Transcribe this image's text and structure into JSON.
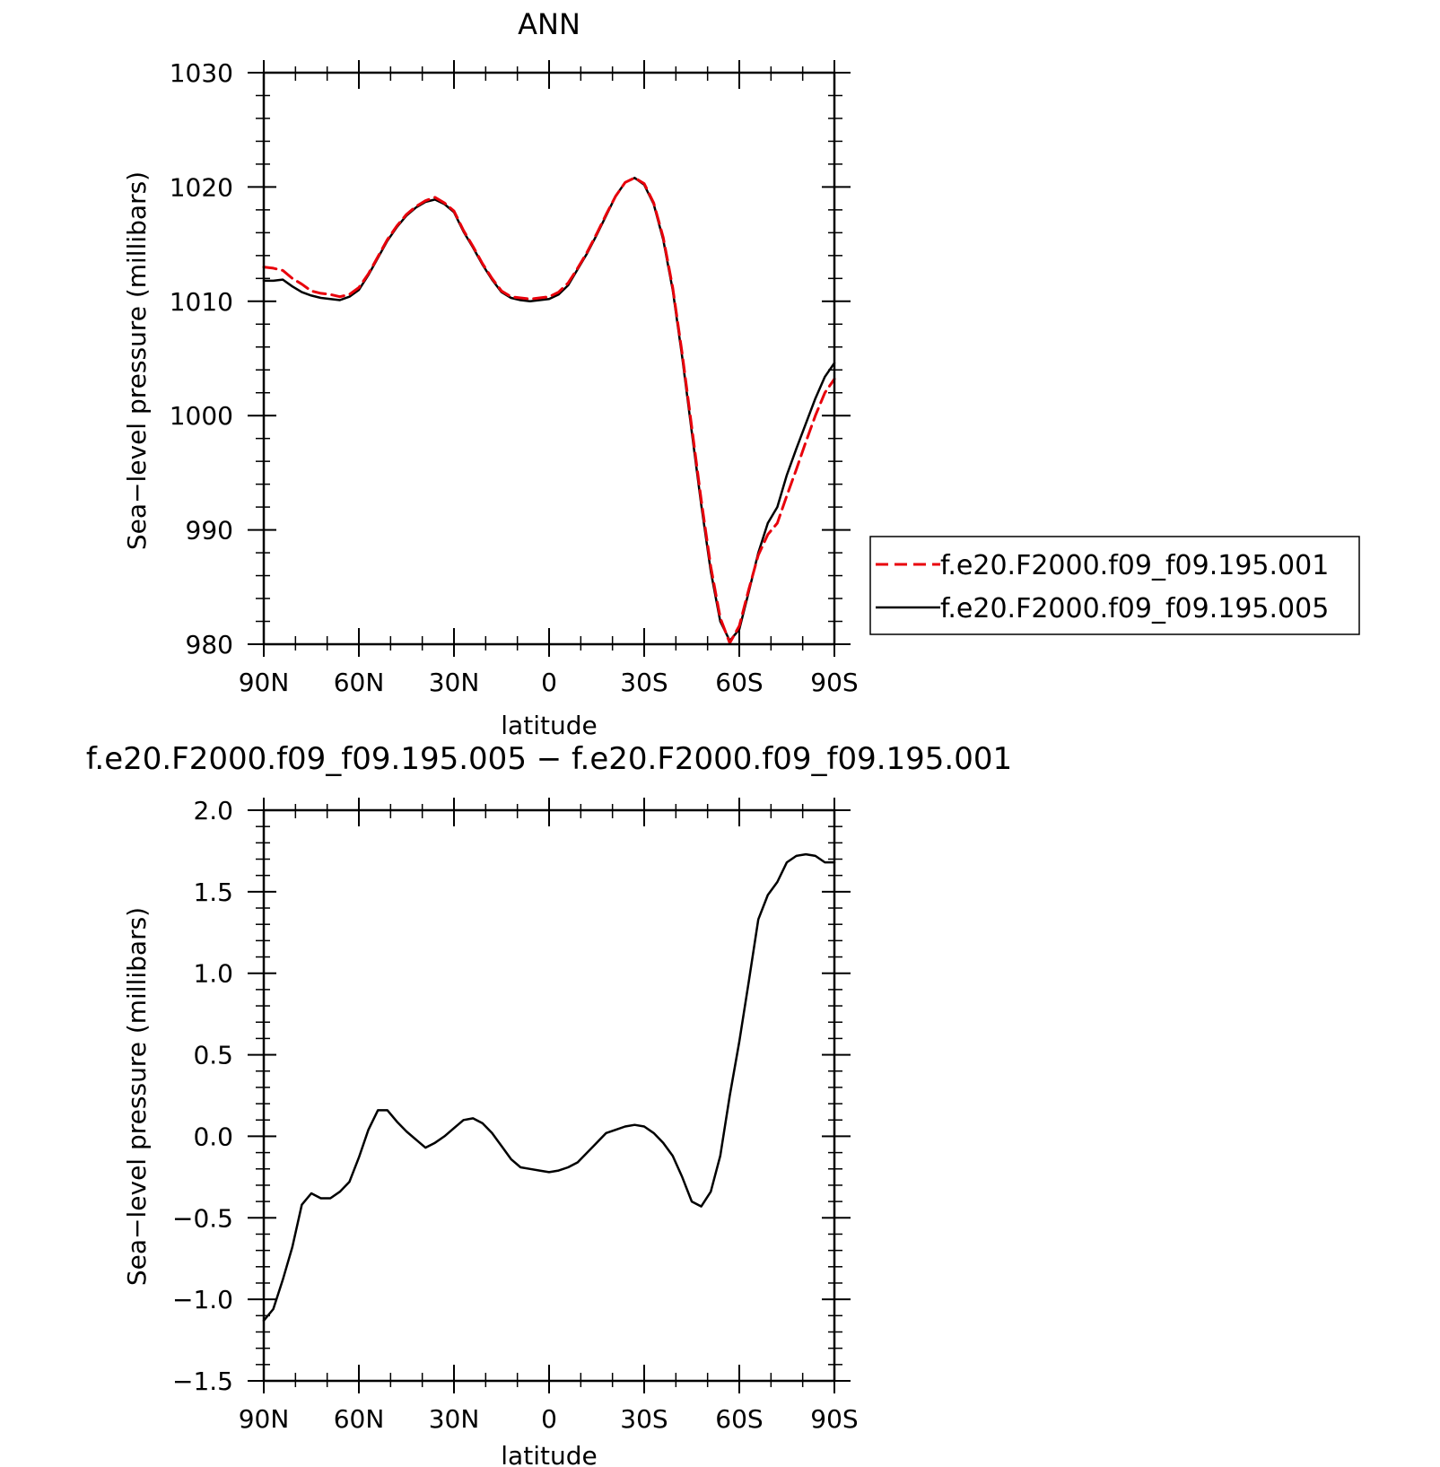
{
  "chart_data": [
    {
      "type": "line",
      "title": "ANN",
      "xlabel": "latitude",
      "ylabel": "Sea−level pressure (millibars)",
      "xlim": [
        90,
        -90
      ],
      "ylim": [
        980,
        1030
      ],
      "x_ticks": [
        {
          "value": 90,
          "label": "90N"
        },
        {
          "value": 60,
          "label": "60N"
        },
        {
          "value": 30,
          "label": "30N"
        },
        {
          "value": 0,
          "label": "0"
        },
        {
          "value": -30,
          "label": "30S"
        },
        {
          "value": -60,
          "label": "60S"
        },
        {
          "value": -90,
          "label": "90S"
        }
      ],
      "y_ticks": [
        {
          "value": 980,
          "label": "980"
        },
        {
          "value": 990,
          "label": "990"
        },
        {
          "value": 1000,
          "label": "1000"
        },
        {
          "value": 1010,
          "label": "1010"
        },
        {
          "value": 1020,
          "label": "1020"
        },
        {
          "value": 1030,
          "label": "1030"
        }
      ],
      "grid": false,
      "legend_position": "right",
      "series": [
        {
          "name": "f.e20.F2000.f09_f09.195.001",
          "color": "#e8000b",
          "dash": "dashed",
          "x": [
            90,
            87,
            84,
            81,
            78,
            75,
            72,
            69,
            66,
            63,
            60,
            57,
            54,
            51,
            48,
            45,
            42,
            39,
            36,
            33,
            30,
            27,
            24,
            21,
            18,
            15,
            12,
            9,
            6,
            3,
            0,
            -3,
            -6,
            -9,
            -12,
            -15,
            -18,
            -21,
            -24,
            -27,
            -30,
            -33,
            -36,
            -39,
            -42,
            -45,
            -48,
            -51,
            -54,
            -57,
            -60,
            -63,
            -66,
            -69,
            -72,
            -75,
            -78,
            -81,
            -84,
            -87,
            -90
          ],
          "y": [
            1013.0,
            1012.9,
            1012.7,
            1012.0,
            1011.5,
            1010.9,
            1010.7,
            1010.6,
            1010.4,
            1010.6,
            1011.2,
            1012.4,
            1013.9,
            1015.4,
            1016.6,
            1017.6,
            1018.3,
            1018.8,
            1019.1,
            1018.6,
            1017.9,
            1016.2,
            1014.8,
            1013.3,
            1012.0,
            1010.9,
            1010.4,
            1010.3,
            1010.2,
            1010.3,
            1010.4,
            1010.8,
            1011.6,
            1012.9,
            1014.3,
            1015.9,
            1017.6,
            1019.2,
            1020.4,
            1020.8,
            1020.3,
            1018.6,
            1015.6,
            1011.2,
            1005.4,
            999.0,
            992.6,
            986.8,
            982.3,
            980.1,
            981.6,
            984.8,
            987.8,
            989.6,
            990.6,
            993.0,
            995.3,
            997.7,
            1000.0,
            1002.0,
            1003.2
          ]
        },
        {
          "name": "f.e20.F2000.f09_f09.195.005",
          "color": "#000000",
          "dash": "solid",
          "x": [
            90,
            87,
            84,
            81,
            78,
            75,
            72,
            69,
            66,
            63,
            60,
            57,
            54,
            51,
            48,
            45,
            42,
            39,
            36,
            33,
            30,
            27,
            24,
            21,
            18,
            15,
            12,
            9,
            6,
            3,
            0,
            -3,
            -6,
            -9,
            -12,
            -15,
            -18,
            -21,
            -24,
            -27,
            -30,
            -33,
            -36,
            -39,
            -42,
            -45,
            -48,
            -51,
            -54,
            -57,
            -60,
            -63,
            -66,
            -69,
            -72,
            -75,
            -78,
            -81,
            -84,
            -87,
            -90
          ],
          "y": [
            1011.8,
            1011.8,
            1011.9,
            1011.3,
            1010.8,
            1010.5,
            1010.3,
            1010.2,
            1010.1,
            1010.4,
            1011.0,
            1012.3,
            1013.8,
            1015.3,
            1016.5,
            1017.5,
            1018.2,
            1018.7,
            1018.9,
            1018.5,
            1017.8,
            1016.1,
            1014.7,
            1013.2,
            1011.9,
            1010.8,
            1010.3,
            1010.1,
            1010.0,
            1010.1,
            1010.2,
            1010.6,
            1011.4,
            1012.8,
            1014.2,
            1015.8,
            1017.5,
            1019.2,
            1020.4,
            1020.8,
            1020.2,
            1018.5,
            1015.4,
            1011.0,
            1005.1,
            998.6,
            992.2,
            986.4,
            982.0,
            980.3,
            981.3,
            984.6,
            988.0,
            990.6,
            992.0,
            994.8,
            997.1,
            999.3,
            1001.5,
            1003.4,
            1004.6
          ]
        }
      ]
    },
    {
      "type": "line",
      "title": "f.e20.F2000.f09_f09.195.005 − f.e20.F2000.f09_f09.195.001",
      "xlabel": "latitude",
      "ylabel": "Sea−level pressure (millibars)",
      "xlim": [
        90,
        -90
      ],
      "ylim": [
        -1.5,
        2.0
      ],
      "x_ticks": [
        {
          "value": 90,
          "label": "90N"
        },
        {
          "value": 60,
          "label": "60N"
        },
        {
          "value": 30,
          "label": "30N"
        },
        {
          "value": 0,
          "label": "0"
        },
        {
          "value": -30,
          "label": "30S"
        },
        {
          "value": -60,
          "label": "60S"
        },
        {
          "value": -90,
          "label": "90S"
        }
      ],
      "y_ticks": [
        {
          "value": -1.5,
          "label": "−1.5"
        },
        {
          "value": -1.0,
          "label": "−1.0"
        },
        {
          "value": -0.5,
          "label": "−0.5"
        },
        {
          "value": 0.0,
          "label": "0.0"
        },
        {
          "value": 0.5,
          "label": "0.5"
        },
        {
          "value": 1.0,
          "label": "1.0"
        },
        {
          "value": 1.5,
          "label": "1.5"
        },
        {
          "value": 2.0,
          "label": "2.0"
        }
      ],
      "grid": false,
      "series": [
        {
          "color": "#000000",
          "dash": "solid",
          "x": [
            90,
            87,
            84,
            81,
            78,
            75,
            72,
            69,
            66,
            63,
            60,
            57,
            54,
            51,
            48,
            45,
            42,
            39,
            36,
            33,
            30,
            27,
            24,
            21,
            18,
            15,
            12,
            9,
            6,
            3,
            0,
            -3,
            -6,
            -9,
            -12,
            -15,
            -18,
            -21,
            -24,
            -27,
            -30,
            -33,
            -36,
            -39,
            -42,
            -45,
            -48,
            -51,
            -54,
            -57,
            -60,
            -63,
            -66,
            -69,
            -72,
            -75,
            -78,
            -81,
            -84,
            -87,
            -90
          ],
          "y": [
            -1.13,
            -1.06,
            -0.88,
            -0.68,
            -0.42,
            -0.35,
            -0.38,
            -0.38,
            -0.34,
            -0.28,
            -0.13,
            0.04,
            0.16,
            0.16,
            0.09,
            0.03,
            -0.02,
            -0.07,
            -0.04,
            0.0,
            0.05,
            0.1,
            0.11,
            0.08,
            0.02,
            -0.06,
            -0.14,
            -0.19,
            -0.2,
            -0.21,
            -0.22,
            -0.21,
            -0.19,
            -0.16,
            -0.1,
            -0.04,
            0.02,
            0.04,
            0.06,
            0.07,
            0.06,
            0.02,
            -0.04,
            -0.12,
            -0.25,
            -0.4,
            -0.43,
            -0.34,
            -0.12,
            0.25,
            0.58,
            0.95,
            1.33,
            1.48,
            1.56,
            1.68,
            1.72,
            1.73,
            1.72,
            1.68,
            1.68
          ]
        }
      ]
    }
  ]
}
